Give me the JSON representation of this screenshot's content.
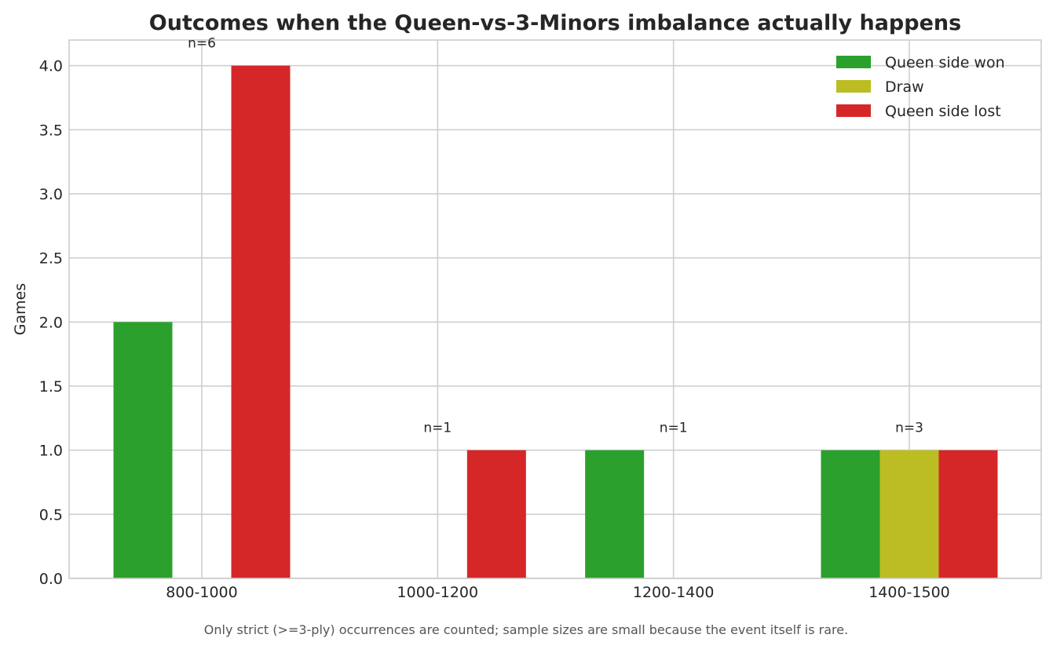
{
  "chart_data": {
    "type": "bar",
    "title": "Outcomes when the Queen-vs-3-Minors imbalance actually happens",
    "xlabel": "",
    "ylabel": "Games",
    "categories": [
      "800-1000",
      "1000-1200",
      "1200-1400",
      "1400-1500"
    ],
    "series": [
      {
        "name": "Queen side won",
        "color": "#2ca02c",
        "values": [
          2,
          0,
          1,
          1
        ]
      },
      {
        "name": "Draw",
        "color": "#bcbd22",
        "values": [
          0,
          0,
          0,
          1
        ]
      },
      {
        "name": "Queen side lost",
        "color": "#d62728",
        "values": [
          4,
          1,
          0,
          1
        ]
      }
    ],
    "annotations": [
      "n=6",
      "n=1",
      "n=1",
      "n=3"
    ],
    "ylim": [
      0,
      4.2
    ],
    "yticks": [
      "0.0",
      "0.5",
      "1.0",
      "1.5",
      "2.0",
      "2.5",
      "3.0",
      "3.5",
      "4.0"
    ],
    "grid": true,
    "legend_position": "top-right",
    "caption": "Only strict (>=3-ply) occurrences are counted; sample sizes are small because the event itself is rare."
  }
}
